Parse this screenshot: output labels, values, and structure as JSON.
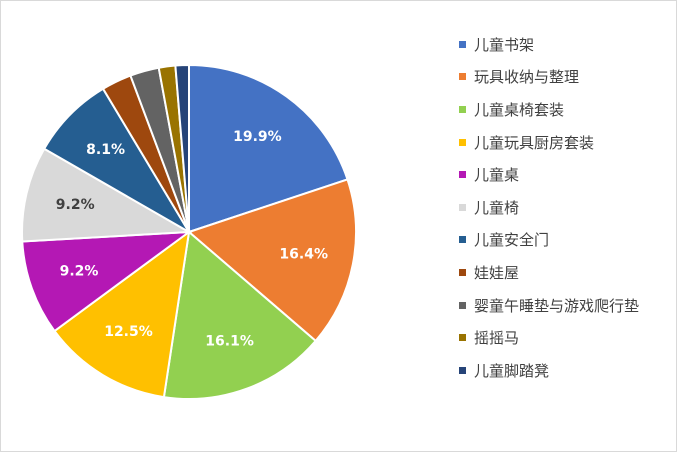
{
  "chart_data": {
    "type": "pie",
    "title": "",
    "categories": [
      "儿童书架",
      "玩具收纳与整理",
      "儿童桌椅套装",
      "儿童玩具厨房套装",
      "儿童桌",
      "儿童椅",
      "儿童安全门",
      "娃娃屋",
      "婴童午睡垫与游戏爬行垫",
      "摇摇马",
      "儿童脚踏凳"
    ],
    "values": [
      19.9,
      16.4,
      16.1,
      12.5,
      9.2,
      9.2,
      8.1,
      2.9,
      2.8,
      1.6,
      1.3
    ],
    "data_labels": [
      "19.9%",
      "16.4%",
      "16.1%",
      "12.5%",
      "9.2%",
      "9.2%",
      "8.1%",
      "",
      "",
      "",
      ""
    ],
    "colors": [
      "#4472C4",
      "#ED7D31",
      "#92D050",
      "#FFC000",
      "#B418B4",
      "#D9D9D9",
      "#255E91",
      "#9E480E",
      "#636363",
      "#997300",
      "#264478"
    ],
    "legend_position": "right",
    "unit": "%"
  }
}
